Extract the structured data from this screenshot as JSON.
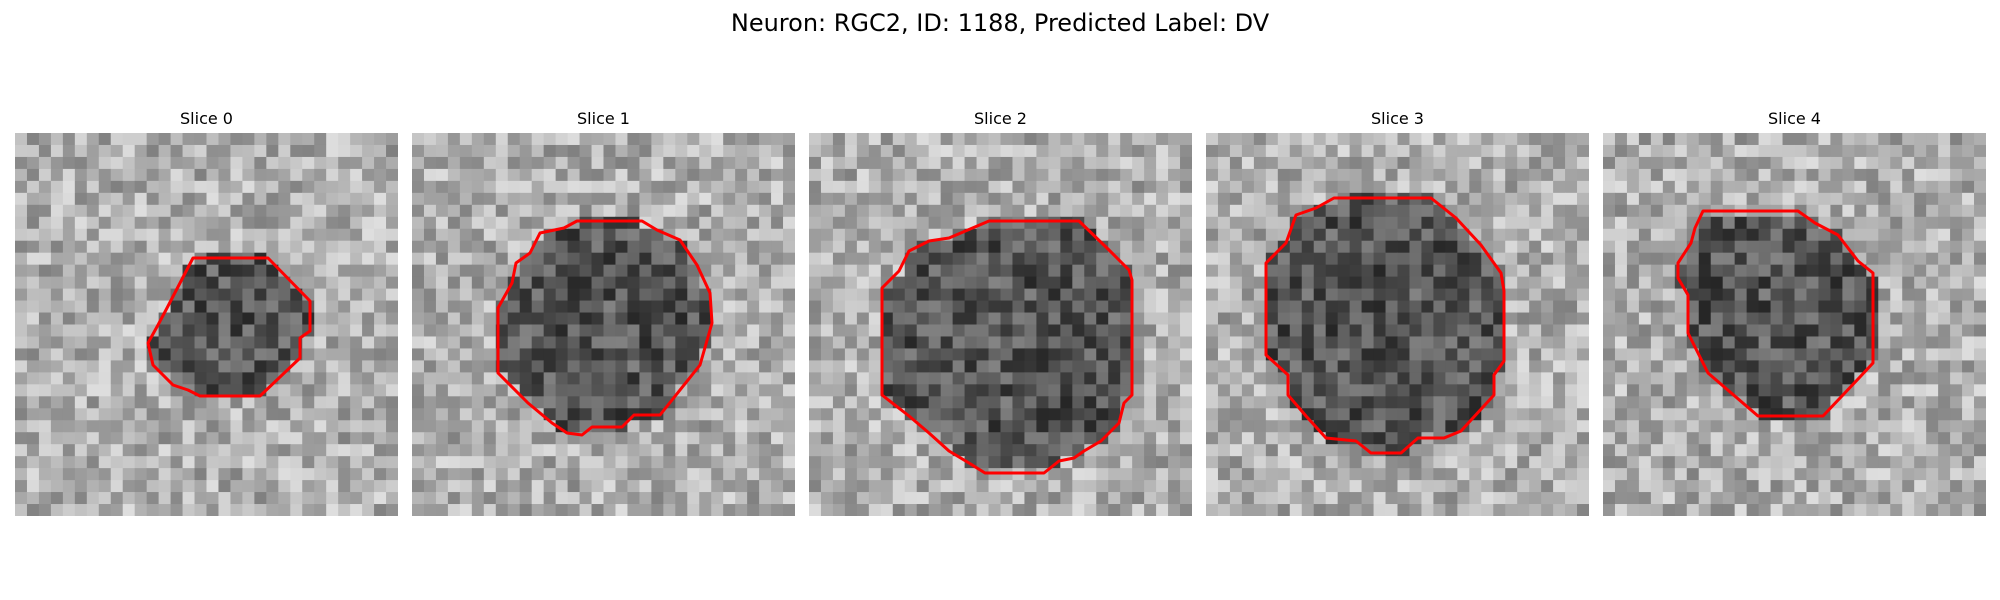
{
  "figure": {
    "title": "Neuron: RGC2, ID: 1188, Predicted Label: DV"
  },
  "contour_color": "#ff0000",
  "colormap": "grayscale",
  "slices": [
    {
      "title": "Slice 0"
    },
    {
      "title": "Slice 1"
    },
    {
      "title": "Slice 2"
    },
    {
      "title": "Slice 3"
    },
    {
      "title": "Slice 4"
    }
  ]
}
